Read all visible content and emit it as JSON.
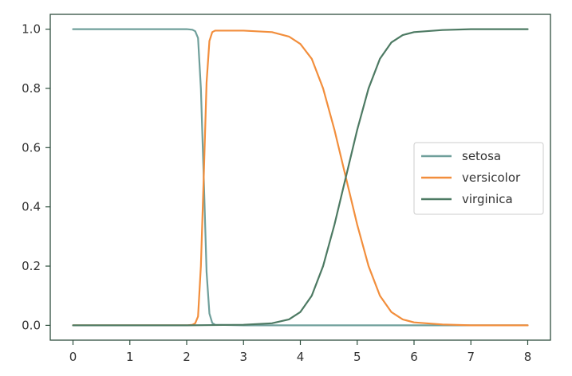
{
  "chart_data": {
    "type": "line",
    "title": "",
    "xlabel": "",
    "ylabel": "",
    "xlim": [
      -0.4,
      8.4
    ],
    "ylim": [
      -0.05,
      1.05
    ],
    "xticks": [
      0,
      1,
      2,
      3,
      4,
      5,
      6,
      7,
      8
    ],
    "yticks": [
      0.0,
      0.2,
      0.4,
      0.6,
      0.8,
      1.0
    ],
    "xtick_labels": [
      "0",
      "1",
      "2",
      "3",
      "4",
      "5",
      "6",
      "7",
      "8"
    ],
    "ytick_labels": [
      "0.0",
      "0.2",
      "0.4",
      "0.6",
      "0.8",
      "1.0"
    ],
    "grid": false,
    "legend_position": "center-right",
    "series": [
      {
        "name": "setosa",
        "color": "#6f9f9b",
        "x": [
          0,
          0.5,
          1.0,
          1.5,
          2.0,
          2.1,
          2.15,
          2.2,
          2.25,
          2.3,
          2.35,
          2.4,
          2.45,
          2.5,
          3.0,
          4.0,
          5.0,
          6.0,
          7.0,
          8.0
        ],
        "y": [
          1.0,
          1.0,
          1.0,
          1.0,
          1.0,
          0.998,
          0.993,
          0.97,
          0.8,
          0.5,
          0.18,
          0.04,
          0.008,
          0.002,
          0.0,
          0.0,
          0.0,
          0.0,
          0.0,
          0.0
        ]
      },
      {
        "name": "versicolor",
        "color": "#f28e3c",
        "x": [
          0,
          1.0,
          2.0,
          2.1,
          2.15,
          2.2,
          2.25,
          2.3,
          2.35,
          2.4,
          2.45,
          2.5,
          3.0,
          3.5,
          3.8,
          4.0,
          4.2,
          4.4,
          4.6,
          4.8,
          5.0,
          5.2,
          5.4,
          5.6,
          5.8,
          6.0,
          6.5,
          7.0,
          8.0
        ],
        "y": [
          0.0,
          0.0,
          0.0,
          0.002,
          0.007,
          0.03,
          0.2,
          0.5,
          0.82,
          0.96,
          0.99,
          0.995,
          0.995,
          0.99,
          0.975,
          0.95,
          0.9,
          0.8,
          0.66,
          0.5,
          0.34,
          0.2,
          0.1,
          0.045,
          0.02,
          0.01,
          0.003,
          0.0,
          0.0
        ]
      },
      {
        "name": "virginica",
        "color": "#4d7a63",
        "x": [
          0,
          1.0,
          2.0,
          3.0,
          3.5,
          3.8,
          4.0,
          4.2,
          4.4,
          4.6,
          4.8,
          5.0,
          5.2,
          5.4,
          5.6,
          5.8,
          6.0,
          6.5,
          7.0,
          8.0
        ],
        "y": [
          0.0,
          0.0,
          0.0,
          0.002,
          0.007,
          0.02,
          0.045,
          0.1,
          0.2,
          0.34,
          0.5,
          0.66,
          0.8,
          0.9,
          0.955,
          0.98,
          0.99,
          0.997,
          1.0,
          1.0
        ]
      }
    ]
  }
}
